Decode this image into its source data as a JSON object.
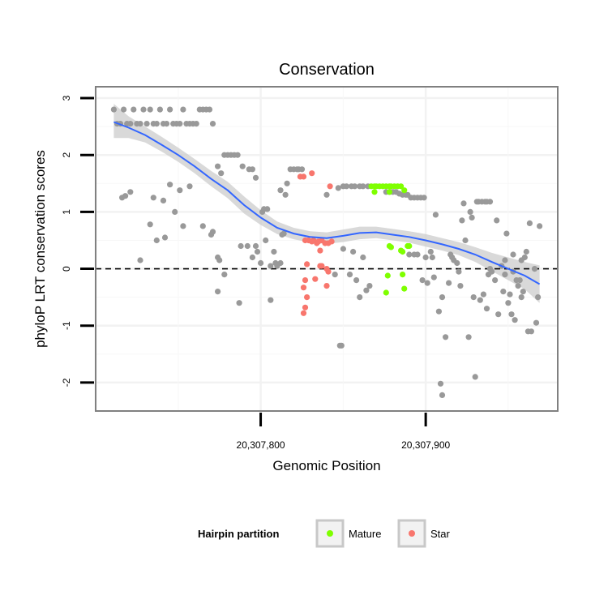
{
  "chart_data": {
    "type": "scatter",
    "title": "Conservation",
    "xlabel": "Genomic Position",
    "ylabel": "phyloP LRT conservation scores",
    "xlim": [
      20307700,
      20307980
    ],
    "ylim": [
      -2.5,
      3.2
    ],
    "x_ticks": [
      {
        "value": 20307800,
        "label": "20,307,800"
      },
      {
        "value": 20307900,
        "label": "20,307,900"
      }
    ],
    "y_ticks": [
      {
        "value": 3,
        "label": "3"
      },
      {
        "value": 2,
        "label": "2"
      },
      {
        "value": 1,
        "label": "1"
      },
      {
        "value": 0,
        "label": "0"
      },
      {
        "value": -1,
        "label": "-1"
      },
      {
        "value": -2,
        "label": "-2"
      }
    ],
    "reference_line": {
      "y": 0,
      "style": "dashed"
    },
    "grid": true,
    "legend": {
      "title": "Hairpin partition",
      "position": "bottom",
      "entries": [
        {
          "label": "Mature",
          "color": "#7FFF00"
        },
        {
          "label": "Star",
          "color": "#F8766D"
        }
      ]
    },
    "colors": {
      "other": "#999999",
      "mature": "#7FFF00",
      "star": "#F8766D",
      "smooth": "#3366FF",
      "band": "#cccccc"
    },
    "series": [
      {
        "name": "Other",
        "points": [
          [
            20307711,
            2.8
          ],
          [
            20307713,
            2.55
          ],
          [
            20307715,
            2.55
          ],
          [
            20307717,
            2.8
          ],
          [
            20307719,
            2.55
          ],
          [
            20307721,
            2.55
          ],
          [
            20307723,
            2.8
          ],
          [
            20307725,
            2.55
          ],
          [
            20307727,
            2.55
          ],
          [
            20307729,
            2.8
          ],
          [
            20307731,
            2.55
          ],
          [
            20307733,
            2.8
          ],
          [
            20307735,
            2.55
          ],
          [
            20307737,
            2.55
          ],
          [
            20307739,
            2.8
          ],
          [
            20307741,
            2.55
          ],
          [
            20307743,
            2.55
          ],
          [
            20307745,
            2.8
          ],
          [
            20307747,
            2.55
          ],
          [
            20307749,
            2.55
          ],
          [
            20307751,
            2.55
          ],
          [
            20307753,
            2.8
          ],
          [
            20307755,
            2.55
          ],
          [
            20307757,
            2.55
          ],
          [
            20307759,
            2.55
          ],
          [
            20307761,
            2.55
          ],
          [
            20307763,
            2.8
          ],
          [
            20307765,
            2.8
          ],
          [
            20307767,
            2.8
          ],
          [
            20307769,
            2.8
          ],
          [
            20307771,
            2.55
          ],
          [
            20307716,
            1.25
          ],
          [
            20307718,
            1.28
          ],
          [
            20307721,
            1.35
          ],
          [
            20307735,
            1.25
          ],
          [
            20307741,
            1.2
          ],
          [
            20307745,
            1.48
          ],
          [
            20307751,
            1.38
          ],
          [
            20307757,
            1.45
          ],
          [
            20307727,
            0.15
          ],
          [
            20307733,
            0.78
          ],
          [
            20307737,
            0.5
          ],
          [
            20307742,
            0.55
          ],
          [
            20307748,
            1.0
          ],
          [
            20307753,
            0.75
          ],
          [
            20307765,
            0.75
          ],
          [
            20307770,
            0.6
          ],
          [
            20307771,
            0.65
          ],
          [
            20307774,
            1.8
          ],
          [
            20307776,
            1.68
          ],
          [
            20307778,
            2.0
          ],
          [
            20307780,
            2.0
          ],
          [
            20307782,
            2.0
          ],
          [
            20307784,
            2.0
          ],
          [
            20307786,
            2.0
          ],
          [
            20307789,
            1.8
          ],
          [
            20307793,
            1.75
          ],
          [
            20307795,
            1.75
          ],
          [
            20307797,
            1.6
          ],
          [
            20307774,
            0.2
          ],
          [
            20307775,
            0.15
          ],
          [
            20307774,
            -0.4
          ],
          [
            20307778,
            -0.1
          ],
          [
            20307787,
            -0.6
          ],
          [
            20307788,
            0.4
          ],
          [
            20307792,
            0.4
          ],
          [
            20307795,
            0.2
          ],
          [
            20307797,
            0.4
          ],
          [
            20307798,
            0.3
          ],
          [
            20307800,
            0.1
          ],
          [
            20307801,
            1.0
          ],
          [
            20307802,
            1.05
          ],
          [
            20307803,
            0.5
          ],
          [
            20307804,
            1.05
          ],
          [
            20307806,
            -0.55
          ],
          [
            20307806,
            0.05
          ],
          [
            20307808,
            0.3
          ],
          [
            20307809,
            0.1
          ],
          [
            20307810,
            0.05
          ],
          [
            20307812,
            0.1
          ],
          [
            20307813,
            0.6
          ],
          [
            20307814,
            0.62
          ],
          [
            20307815,
            1.3
          ],
          [
            20307816,
            1.5
          ],
          [
            20307818,
            1.75
          ],
          [
            20307820,
            1.75
          ],
          [
            20307822,
            1.75
          ],
          [
            20307823,
            1.75
          ],
          [
            20307825,
            1.75
          ],
          [
            20307812,
            1.38
          ],
          [
            20307847,
            1.42
          ],
          [
            20307850,
            1.45
          ],
          [
            20307852,
            1.45
          ],
          [
            20307855,
            1.45
          ],
          [
            20307857,
            1.45
          ],
          [
            20307860,
            1.45
          ],
          [
            20307862,
            1.45
          ],
          [
            20307865,
            1.45
          ],
          [
            20307840,
            1.3
          ],
          [
            20307845,
            -0.1
          ],
          [
            20307848,
            -1.35
          ],
          [
            20307849,
            -1.35
          ],
          [
            20307850,
            0.35
          ],
          [
            20307854,
            -0.1
          ],
          [
            20307856,
            0.3
          ],
          [
            20307858,
            -0.2
          ],
          [
            20307860,
            -0.5
          ],
          [
            20307862,
            0.2
          ],
          [
            20307864,
            -0.38
          ],
          [
            20307866,
            -0.3
          ],
          [
            20307876,
            1.35
          ],
          [
            20307878,
            1.35
          ],
          [
            20307880,
            1.35
          ],
          [
            20307882,
            1.35
          ],
          [
            20307884,
            1.32
          ],
          [
            20307886,
            1.3
          ],
          [
            20307888,
            1.3
          ],
          [
            20307889,
            1.3
          ],
          [
            20307891,
            1.25
          ],
          [
            20307893,
            1.25
          ],
          [
            20307895,
            1.25
          ],
          [
            20307897,
            1.25
          ],
          [
            20307899,
            1.25
          ],
          [
            20307890,
            0.25
          ],
          [
            20307893,
            0.25
          ],
          [
            20307895,
            0.25
          ],
          [
            20307898,
            -0.2
          ],
          [
            20307900,
            0.2
          ],
          [
            20307901,
            -0.25
          ],
          [
            20307903,
            0.3
          ],
          [
            20307904,
            0.2
          ],
          [
            20307905,
            -0.15
          ],
          [
            20307906,
            0.95
          ],
          [
            20307908,
            -0.75
          ],
          [
            20307910,
            -0.5
          ],
          [
            20307912,
            -1.2
          ],
          [
            20307909,
            -2.02
          ],
          [
            20307910,
            -2.22
          ],
          [
            20307914,
            -0.25
          ],
          [
            20307915,
            0.25
          ],
          [
            20307916,
            0.2
          ],
          [
            20307917,
            0.15
          ],
          [
            20307919,
            0.1
          ],
          [
            20307920,
            -0.05
          ],
          [
            20307921,
            -0.3
          ],
          [
            20307922,
            0.85
          ],
          [
            20307923,
            1.15
          ],
          [
            20307924,
            0.5
          ],
          [
            20307926,
            -1.2
          ],
          [
            20307927,
            1.0
          ],
          [
            20307928,
            0.9
          ],
          [
            20307929,
            -0.5
          ],
          [
            20307930,
            -1.9
          ],
          [
            20307931,
            1.18
          ],
          [
            20307932,
            1.18
          ],
          [
            20307934,
            1.18
          ],
          [
            20307936,
            1.18
          ],
          [
            20307937,
            1.18
          ],
          [
            20307939,
            1.18
          ],
          [
            20307933,
            -0.55
          ],
          [
            20307935,
            -0.45
          ],
          [
            20307937,
            -0.7
          ],
          [
            20307938,
            -0.1
          ],
          [
            20307939,
            0.0
          ],
          [
            20307940,
            -0.05
          ],
          [
            20307942,
            -0.2
          ],
          [
            20307943,
            0.85
          ],
          [
            20307944,
            -0.8
          ],
          [
            20307946,
            0.05
          ],
          [
            20307947,
            -0.4
          ],
          [
            20307948,
            -0.1
          ],
          [
            20307949,
            0.62
          ],
          [
            20307950,
            -0.6
          ],
          [
            20307951,
            -0.45
          ],
          [
            20307952,
            -0.8
          ],
          [
            20307953,
            0.25
          ],
          [
            20307954,
            -0.9
          ],
          [
            20307955,
            -0.2
          ],
          [
            20307956,
            -0.3
          ],
          [
            20307957,
            -0.2
          ],
          [
            20307958,
            0.15
          ],
          [
            20307959,
            -0.4
          ],
          [
            20307960,
            0.2
          ],
          [
            20307961,
            0.3
          ],
          [
            20307962,
            -1.1
          ],
          [
            20307963,
            0.8
          ],
          [
            20307964,
            -1.1
          ],
          [
            20307966,
            0.0
          ],
          [
            20307967,
            -0.95
          ],
          [
            20307968,
            -0.5
          ],
          [
            20307969,
            0.75
          ],
          [
            20307948,
            0.15
          ],
          [
            20307953,
            -0.05
          ],
          [
            20307958,
            -0.5
          ]
        ]
      },
      {
        "name": "Mature",
        "points": [
          [
            20307867,
            1.45
          ],
          [
            20307869,
            1.45
          ],
          [
            20307870,
            1.45
          ],
          [
            20307872,
            1.45
          ],
          [
            20307874,
            1.45
          ],
          [
            20307876,
            1.45
          ],
          [
            20307878,
            1.45
          ],
          [
            20307879,
            1.45
          ],
          [
            20307881,
            1.45
          ],
          [
            20307883,
            1.45
          ],
          [
            20307885,
            1.45
          ],
          [
            20307887,
            1.38
          ],
          [
            20307869,
            1.35
          ],
          [
            20307878,
            1.35
          ],
          [
            20307878,
            0.4
          ],
          [
            20307879,
            0.38
          ],
          [
            20307885,
            0.32
          ],
          [
            20307886,
            0.3
          ],
          [
            20307889,
            0.4
          ],
          [
            20307890,
            0.4
          ],
          [
            20307877,
            -0.12
          ],
          [
            20307886,
            -0.1
          ],
          [
            20307876,
            -0.42
          ],
          [
            20307887,
            -0.35
          ]
        ]
      },
      {
        "name": "Star",
        "points": [
          [
            20307824,
            1.62
          ],
          [
            20307826,
            1.62
          ],
          [
            20307831,
            1.68
          ],
          [
            20307842,
            1.45
          ],
          [
            20307827,
            0.5
          ],
          [
            20307829,
            0.5
          ],
          [
            20307831,
            0.48
          ],
          [
            20307832,
            0.5
          ],
          [
            20307834,
            0.45
          ],
          [
            20307835,
            0.48
          ],
          [
            20307837,
            0.5
          ],
          [
            20307839,
            0.45
          ],
          [
            20307841,
            0.45
          ],
          [
            20307843,
            0.48
          ],
          [
            20307836,
            0.32
          ],
          [
            20307828,
            0.08
          ],
          [
            20307836,
            0.05
          ],
          [
            20307837,
            0.05
          ],
          [
            20307840,
            0.0
          ],
          [
            20307841,
            -0.05
          ],
          [
            20307827,
            -0.2
          ],
          [
            20307833,
            -0.18
          ],
          [
            20307826,
            -0.33
          ],
          [
            20307840,
            -0.3
          ],
          [
            20307828,
            -0.5
          ],
          [
            20307827,
            -0.68
          ],
          [
            20307826,
            -0.78
          ]
        ]
      }
    ],
    "smooth": {
      "x": [
        20307711,
        20307720,
        20307730,
        20307740,
        20307750,
        20307760,
        20307770,
        20307780,
        20307790,
        20307800,
        20307810,
        20307820,
        20307830,
        20307840,
        20307850,
        20307860,
        20307870,
        20307880,
        20307890,
        20307900,
        20307910,
        20307920,
        20307930,
        20307940,
        20307950,
        20307960,
        20307969
      ],
      "y": [
        2.58,
        2.48,
        2.35,
        2.18,
        2.0,
        1.8,
        1.58,
        1.38,
        1.12,
        0.9,
        0.72,
        0.62,
        0.56,
        0.54,
        0.58,
        0.63,
        0.64,
        0.6,
        0.56,
        0.5,
        0.43,
        0.35,
        0.25,
        0.12,
        0.0,
        -0.12,
        -0.27
      ],
      "lower": [
        2.3,
        2.3,
        2.22,
        2.06,
        1.88,
        1.68,
        1.45,
        1.24,
        0.97,
        0.77,
        0.61,
        0.52,
        0.46,
        0.44,
        0.47,
        0.52,
        0.54,
        0.5,
        0.46,
        0.39,
        0.32,
        0.24,
        0.12,
        -0.04,
        -0.2,
        -0.36,
        -0.6
      ],
      "upper": [
        2.9,
        2.68,
        2.5,
        2.32,
        2.13,
        1.93,
        1.72,
        1.53,
        1.27,
        1.03,
        0.83,
        0.72,
        0.66,
        0.64,
        0.69,
        0.74,
        0.74,
        0.7,
        0.66,
        0.61,
        0.54,
        0.47,
        0.38,
        0.28,
        0.2,
        0.12,
        0.06
      ]
    }
  }
}
